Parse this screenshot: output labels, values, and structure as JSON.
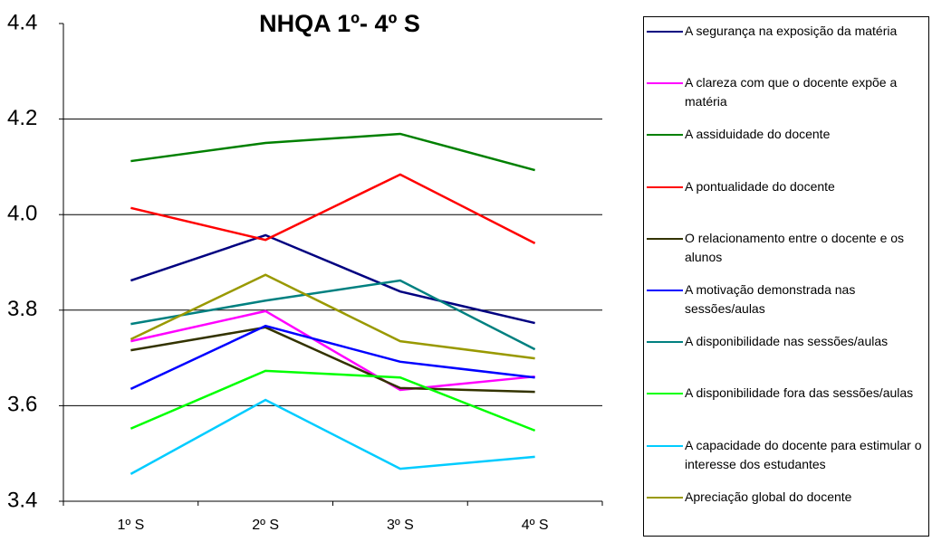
{
  "chart_data": {
    "type": "line",
    "title": "NHQA 1º- 4º S",
    "categories": [
      "1º S",
      "2º S",
      "3º S",
      "4º S"
    ],
    "ylim": [
      3.4,
      4.4
    ],
    "yticks": [
      3.4,
      3.6,
      3.8,
      {
        "value": 4,
        "label": "4.0"
      },
      4.2,
      4.4
    ],
    "grid": true,
    "legend": "right",
    "series": [
      {
        "name": "A segurança na exposição da matéria",
        "color": "#000080",
        "values": [
          3.862,
          3.957,
          3.839,
          3.773
        ]
      },
      {
        "name": "A clareza com que o docente expõe a matéria",
        "color": "#ff00ff",
        "values": [
          3.735,
          3.798,
          3.633,
          3.661
        ]
      },
      {
        "name": "A assiduidade do docente",
        "color": "#008000",
        "values": [
          4.112,
          4.15,
          4.169,
          4.093
        ]
      },
      {
        "name": "A pontualidade do docente",
        "color": "#ff0000",
        "values": [
          4.014,
          3.947,
          4.084,
          3.94
        ]
      },
      {
        "name": "O relacionamento entre o docente e os alunos",
        "color": "#333300",
        "values": [
          3.716,
          3.764,
          3.637,
          3.629
        ]
      },
      {
        "name": "A motivação demonstrada nas sessões/aulas",
        "color": "#0000ff",
        "values": [
          3.635,
          3.767,
          3.692,
          3.659
        ]
      },
      {
        "name": "A disponibilidade nas sessões/aulas",
        "color": "#008080",
        "values": [
          3.771,
          3.82,
          3.862,
          3.718
        ]
      },
      {
        "name": "A disponibilidade fora das sessões/aulas",
        "color": "#00ff00",
        "values": [
          3.552,
          3.673,
          3.659,
          3.548
        ]
      },
      {
        "name": "A capacidade do docente para estimular o interesse dos estudantes",
        "color": "#00ccff",
        "values": [
          3.457,
          3.612,
          3.468,
          3.493
        ]
      },
      {
        "name": "Apreciação global do docente",
        "color": "#999900",
        "values": [
          3.739,
          3.874,
          3.735,
          3.699
        ]
      }
    ]
  }
}
